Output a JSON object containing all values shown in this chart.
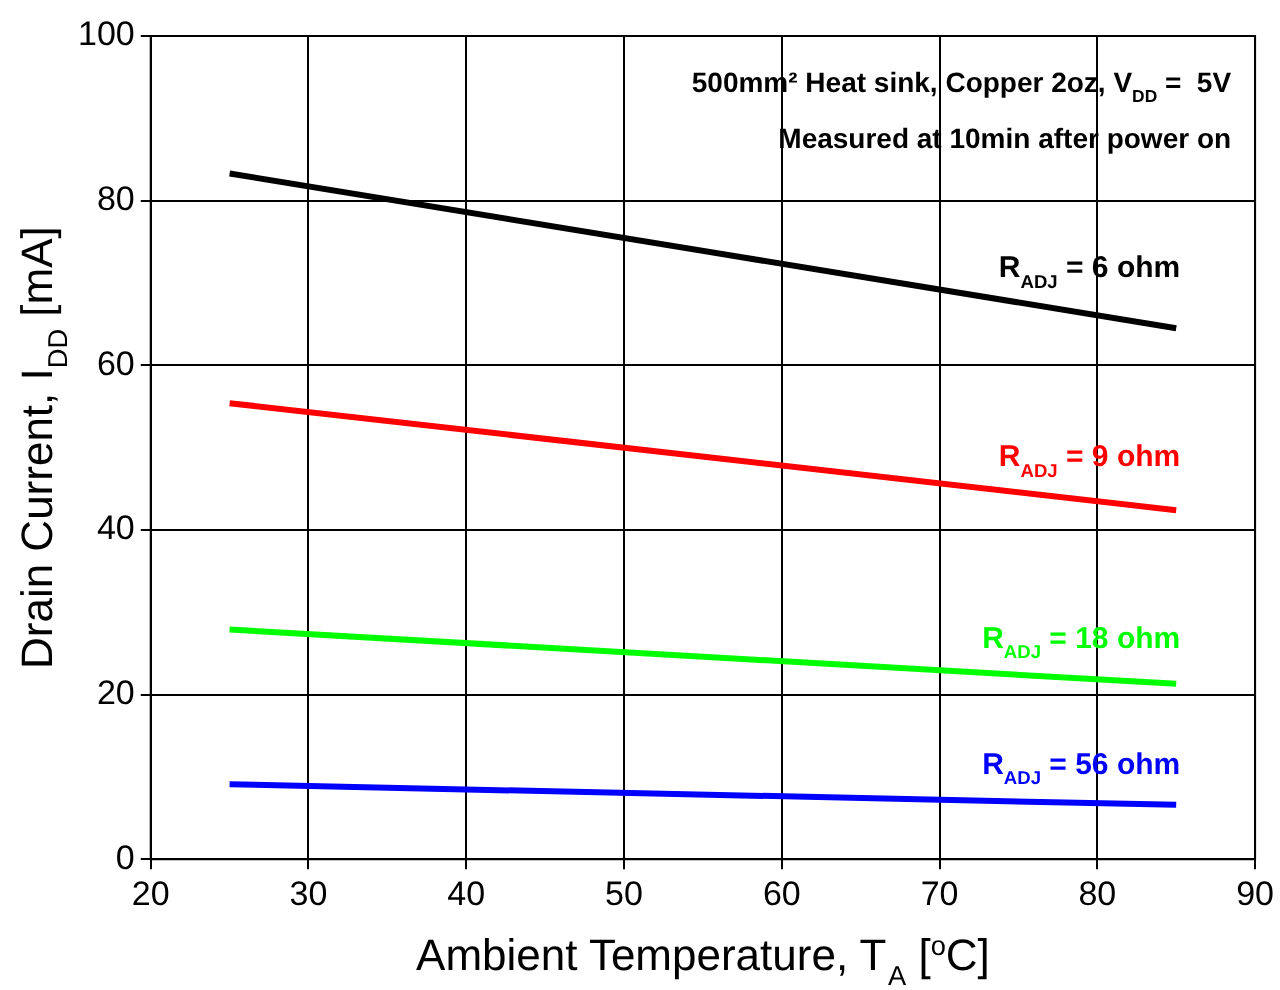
{
  "chart_data": {
    "type": "line",
    "xlabel": "Ambient Temperature, T$_{A}$ [$^{o}$C]",
    "ylabel": "Drain Current, I$_{DD}$ [mA]",
    "x": [
      25,
      85
    ],
    "xlim": [
      20,
      90
    ],
    "xticks": [
      20,
      30,
      40,
      50,
      60,
      70,
      80,
      90
    ],
    "ylim": [
      0,
      100
    ],
    "yticks": [
      0,
      20,
      40,
      60,
      80,
      100
    ],
    "grid": true,
    "legend": false,
    "marker": "none",
    "line_style": "solid",
    "annotations": [
      "500mm² Heat sink, Copper 2oz, V$_{DD}$ =  5V",
      "Measured at 10min after power on"
    ],
    "series": [
      {
        "name": "R$_{ADJ}$ = 6 ohm",
        "color": "#000000",
        "values": [
          83.3,
          64.5
        ]
      },
      {
        "name": "R$_{ADJ}$ = 9 ohm",
        "color": "#ff0000",
        "values": [
          55.4,
          42.4
        ]
      },
      {
        "name": "R$_{ADJ}$ = 18 ohm",
        "color": "#00ff00",
        "values": [
          27.9,
          21.3
        ]
      },
      {
        "name": "R$_{ADJ}$ = 56 ohm",
        "color": "#0000ff",
        "values": [
          9.1,
          6.6
        ]
      }
    ]
  }
}
